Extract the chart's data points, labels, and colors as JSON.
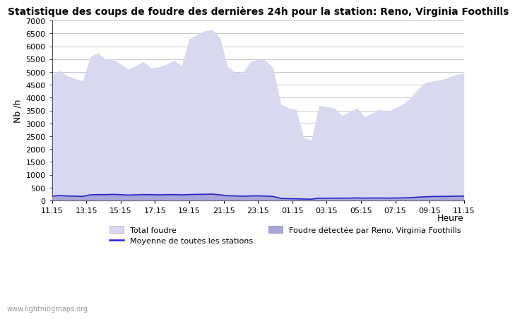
{
  "title": "Statistique des coups de foudre des dernières 24h pour la station: Reno, Virginia Foothills",
  "ylabel": "Nb /h",
  "xlabel": "Heure",
  "watermark": "www.lightningmaps.org",
  "x_labels": [
    "11:15",
    "13:15",
    "15:15",
    "17:15",
    "19:15",
    "21:15",
    "23:15",
    "01:15",
    "03:15",
    "05:15",
    "07:15",
    "09:15",
    "11:15"
  ],
  "ylim": [
    0,
    7000
  ],
  "yticks": [
    0,
    500,
    1000,
    1500,
    2000,
    2500,
    3000,
    3500,
    4000,
    4500,
    5000,
    5500,
    6000,
    6500,
    7000
  ],
  "bg_color": "#ffffff",
  "grid_color": "#c8c8c8",
  "fill_total_color": "#d8d8f0",
  "fill_local_color": "#a8a8d8",
  "line_mean_color": "#2222cc",
  "total_foudre": [
    4900,
    5050,
    4850,
    4750,
    4650,
    5600,
    5750,
    5500,
    5500,
    5300,
    5100,
    5250,
    5400,
    5150,
    5200,
    5300,
    5450,
    5250,
    6300,
    6450,
    6600,
    6650,
    6350,
    5200,
    5000,
    4950,
    5400,
    5500,
    5450,
    5150,
    3750,
    3600,
    3550,
    2450,
    2350,
    3700,
    3650,
    3600,
    3300,
    3450,
    3600,
    3250,
    3400,
    3550,
    3450,
    3600,
    3750,
    4000,
    4350,
    4600,
    4650,
    4700,
    4800,
    4900,
    4950
  ],
  "local_foudre": [
    175,
    205,
    185,
    175,
    165,
    235,
    245,
    240,
    245,
    235,
    225,
    235,
    240,
    235,
    230,
    235,
    240,
    235,
    240,
    245,
    250,
    255,
    235,
    200,
    185,
    175,
    185,
    195,
    180,
    165,
    90,
    80,
    75,
    65,
    60,
    100,
    95,
    100,
    100,
    100,
    110,
    100,
    105,
    105,
    100,
    105,
    110,
    120,
    140,
    155,
    165,
    165,
    170,
    175,
    180
  ],
  "mean_foudre": [
    165,
    195,
    175,
    170,
    158,
    222,
    232,
    228,
    238,
    228,
    212,
    222,
    232,
    228,
    222,
    228,
    232,
    222,
    232,
    238,
    242,
    248,
    222,
    188,
    178,
    168,
    178,
    182,
    172,
    158,
    82,
    72,
    68,
    58,
    52,
    92,
    88,
    92,
    92,
    92,
    102,
    92,
    98,
    98,
    92,
    98,
    102,
    112,
    132,
    148,
    158,
    158,
    162,
    168,
    172
  ],
  "n_points": 55
}
